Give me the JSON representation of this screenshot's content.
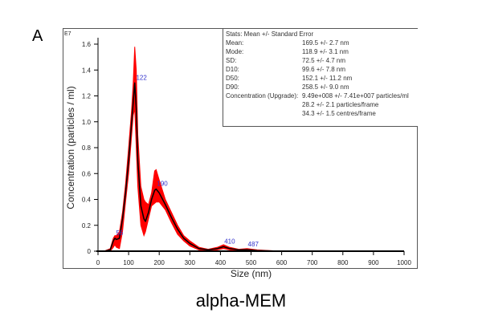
{
  "panel_label": "A",
  "caption": "alpha-MEM",
  "stats": {
    "title": "Stats: Mean +/- Standard Error",
    "rows": [
      {
        "k": "Mean:",
        "v": "169.5 +/- 2.7 nm"
      },
      {
        "k": "Mode:",
        "v": "118.9 +/- 3.1 nm"
      },
      {
        "k": "SD:",
        "v": "72.5 +/- 4.7 nm"
      },
      {
        "k": "D10:",
        "v": "99.6 +/- 7.8 nm"
      },
      {
        "k": "D50:",
        "v": "152.1 +/- 11.2 nm"
      },
      {
        "k": "D90:",
        "v": "258.5 +/- 9.0 nm"
      },
      {
        "k": "Concentration (Upgrade):",
        "v": "9.49e+008 +/- 7.41e+007 particles/ml"
      },
      {
        "k": "",
        "v": "28.2 +/- 2.1 particles/frame"
      },
      {
        "k": "",
        "v": "34.3 +/- 1.5 centres/frame"
      }
    ]
  },
  "chart_data": {
    "type": "line",
    "xlabel": "Size (nm)",
    "ylabel": "Concentration (particles / ml)",
    "y_multiplier": "E7",
    "xlim": [
      0,
      1000
    ],
    "ylim": [
      0,
      1.6
    ],
    "xticks": [
      0,
      100,
      200,
      300,
      400,
      500,
      600,
      700,
      800,
      900,
      1000
    ],
    "yticks": [
      "0",
      "0.2",
      "0.4",
      "0.6",
      "0.8",
      "1.0",
      "1.2",
      "1.4",
      "1.6"
    ],
    "grid": false,
    "colors": {
      "mean": "#000000",
      "error_band": "#ff0000",
      "peak_labels": "#3333cc"
    },
    "series": [
      {
        "x": [
          0,
          20,
          40,
          50,
          55,
          60,
          70,
          80,
          90,
          100,
          110,
          115,
          120,
          125,
          130,
          140,
          150,
          155,
          165,
          175,
          185,
          190,
          200,
          220,
          240,
          260,
          280,
          300,
          330,
          360,
          390,
          410,
          430,
          460,
          487,
          520,
          560,
          600,
          1000
        ],
        "mean": [
          0,
          0,
          0.01,
          0.08,
          0.1,
          0.09,
          0.1,
          0.25,
          0.45,
          0.7,
          1.0,
          1.15,
          1.3,
          1.1,
          0.7,
          0.35,
          0.25,
          0.23,
          0.3,
          0.4,
          0.47,
          0.48,
          0.45,
          0.36,
          0.26,
          0.17,
          0.1,
          0.06,
          0.02,
          0.01,
          0.02,
          0.035,
          0.02,
          0.01,
          0.012,
          0.005,
          0.002,
          0,
          0
        ],
        "upper": [
          0,
          0,
          0.02,
          0.1,
          0.12,
          0.12,
          0.15,
          0.3,
          0.52,
          0.8,
          1.1,
          1.3,
          1.58,
          1.4,
          0.9,
          0.5,
          0.4,
          0.38,
          0.36,
          0.45,
          0.62,
          0.63,
          0.55,
          0.4,
          0.3,
          0.2,
          0.12,
          0.08,
          0.03,
          0.015,
          0.03,
          0.05,
          0.03,
          0.015,
          0.02,
          0.01,
          0.005,
          0,
          0
        ],
        "lower": [
          0,
          0,
          0,
          0.03,
          0.05,
          0.03,
          0.02,
          0.15,
          0.38,
          0.6,
          0.9,
          1.05,
          1.1,
          0.8,
          0.5,
          0.2,
          0.12,
          0.15,
          0.25,
          0.35,
          0.37,
          0.38,
          0.38,
          0.32,
          0.22,
          0.13,
          0.08,
          0.04,
          0.01,
          0.005,
          0.01,
          0.02,
          0.01,
          0.005,
          0.005,
          0,
          0,
          0,
          0
        ]
      }
    ],
    "peak_labels": [
      {
        "x": 56,
        "y": 0.1,
        "text": "56"
      },
      {
        "x": 122,
        "y": 1.3,
        "text": "122"
      },
      {
        "x": 190,
        "y": 0.48,
        "text": "190"
      },
      {
        "x": 410,
        "y": 0.035,
        "text": "410"
      },
      {
        "x": 487,
        "y": 0.012,
        "text": "487"
      }
    ]
  }
}
